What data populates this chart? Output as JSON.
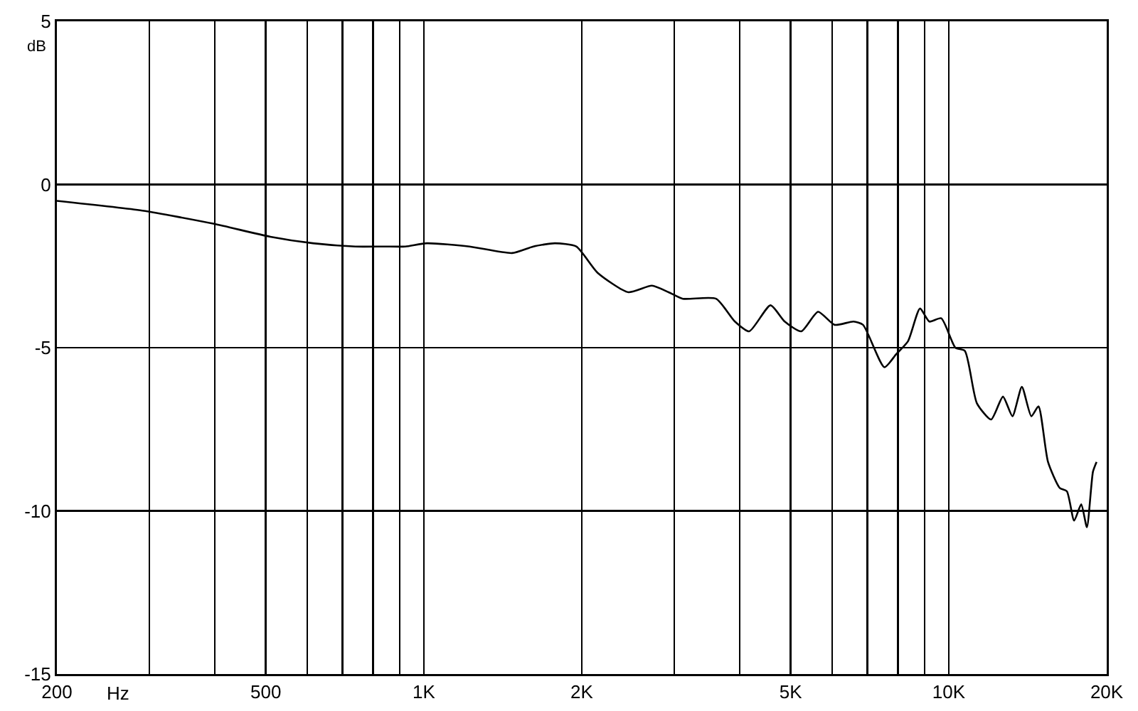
{
  "chart_data": {
    "type": "line",
    "xlabel": "Hz",
    "ylabel": "dB",
    "log": "x",
    "grid": true,
    "marker": "none",
    "line_style": "solid",
    "x": [
      200,
      291,
      397,
      510,
      615,
      741,
      840,
      922,
      1013,
      1222,
      1473,
      1617,
      1777,
      1952,
      2142,
      2453,
      2720,
      2927,
      3115,
      3604,
      3915,
      4168,
      4576,
      4871,
      5238,
      5637,
      6062,
      6586,
      6868,
      7543,
      7943,
      8366,
      8816,
      9187,
      9679,
      10299,
      10737,
      11315,
      12047,
      12688,
      13227,
      13785,
      14369,
      14827,
      15459,
      16279,
      16794,
      17337,
      17884,
      18336,
      18830,
      19130
    ],
    "series": [
      {
        "color": "#000000",
        "values": [
          -0.5,
          -0.8,
          -1.2,
          -1.6,
          -1.8,
          -1.9,
          -1.9,
          -1.9,
          -1.8,
          -1.9,
          -2.1,
          -1.9,
          -1.8,
          -1.9,
          -2.7,
          -3.3,
          -3.1,
          -3.3,
          -3.5,
          -3.5,
          -4.2,
          -4.5,
          -3.7,
          -4.2,
          -4.5,
          -3.9,
          -4.3,
          -4.2,
          -4.3,
          -5.6,
          -5.2,
          -4.8,
          -3.8,
          -4.2,
          -4.1,
          -5.0,
          -5.1,
          -6.7,
          -7.2,
          -6.5,
          -7.1,
          -6.2,
          -7.1,
          -6.8,
          -8.5,
          -9.3,
          -9.4,
          -10.3,
          -9.8,
          -10.5,
          -8.8,
          -8.5
        ]
      }
    ],
    "xlim": [
      200,
      20000
    ],
    "xticks": [
      200,
      {
        "value": 300,
        "label": null
      },
      {
        "value": 400,
        "label": null
      },
      500,
      {
        "value": 600,
        "label": null
      },
      {
        "value": 700,
        "label": null
      },
      {
        "value": 800,
        "label": null
      },
      {
        "value": 900,
        "label": null
      },
      {
        "value": 1000,
        "label": "1K"
      },
      {
        "value": 2000,
        "label": "2K"
      },
      {
        "value": 3000,
        "label": null
      },
      {
        "value": 4000,
        "label": null
      },
      {
        "value": 5000,
        "label": "5K"
      },
      {
        "value": 6000,
        "label": null
      },
      {
        "value": 7000,
        "label": null
      },
      {
        "value": 8000,
        "label": null
      },
      {
        "value": 9000,
        "label": null
      },
      {
        "value": 10000,
        "label": "10K"
      },
      {
        "value": 20000,
        "label": "20K"
      }
    ],
    "ylim": [
      -15,
      5
    ],
    "yticks": [
      -15,
      -10,
      -5,
      0,
      5
    ]
  }
}
